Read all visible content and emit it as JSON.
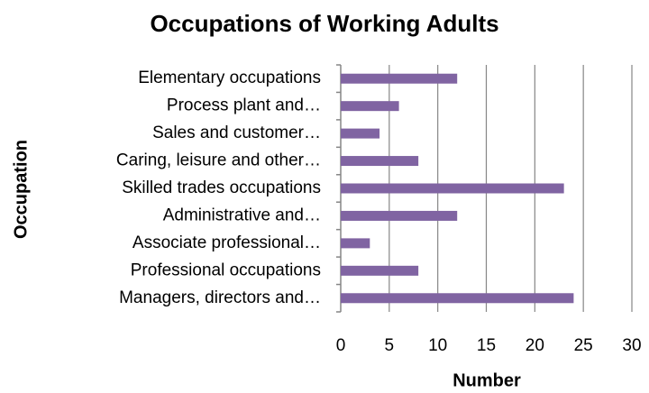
{
  "chart_data": {
    "type": "bar",
    "orientation": "horizontal",
    "title": "Occupations of Working Adults",
    "x_label": "Number",
    "y_label": "Occupation",
    "categories": [
      "Elementary occupations",
      "Process plant and…",
      "Sales and customer…",
      "Caring, leisure and other…",
      "Skilled trades occupations",
      "Administrative and…",
      "Associate professional…",
      "Professional occupations",
      "Managers, directors and…"
    ],
    "values": [
      12,
      6,
      4,
      8,
      23,
      12,
      3,
      8,
      24
    ],
    "color": "#8064a2",
    "xlim": [
      0,
      30
    ],
    "xticks": [
      0,
      5,
      10,
      15,
      20,
      25,
      30
    ],
    "grid": true
  }
}
